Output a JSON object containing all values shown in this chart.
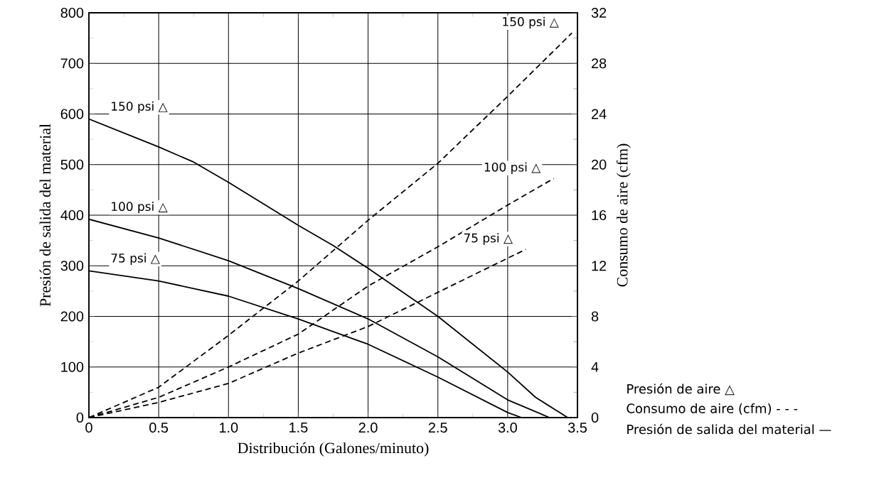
{
  "chart_data": {
    "type": "line",
    "xlabel": "Distribución (Galones/minuto)",
    "ylabel": "Presión de salida del material",
    "y2label": "Consumo de aire (cfm)",
    "xlim": [
      0,
      3.5
    ],
    "ylim": [
      0,
      800
    ],
    "y2lim": [
      0,
      32
    ],
    "xticks": [
      0,
      0.5,
      {
        "value": 1,
        "label": "1.0"
      },
      1.5,
      {
        "value": 2,
        "label": "2.0"
      },
      2.5,
      {
        "value": 3,
        "label": "3.0"
      },
      3.5
    ],
    "yticks": [
      0,
      100,
      200,
      300,
      400,
      500,
      600,
      700,
      800
    ],
    "y2ticks": [
      0,
      4,
      8,
      12,
      16,
      20,
      24,
      28,
      32
    ],
    "grid": true,
    "series": [
      {
        "name": "150 psi △",
        "color": "#000000",
        "line_style": "solid",
        "x": [
          0,
          0.5,
          0.75,
          1.0,
          1.5,
          1.75,
          2.0,
          2.5,
          3.0,
          3.2,
          3.43
        ],
        "values": [
          590,
          535,
          505,
          465,
          380,
          340,
          295,
          200,
          90,
          40,
          0
        ]
      },
      {
        "name": "100 psi △",
        "color": "#000000",
        "line_style": "solid",
        "x": [
          0,
          0.5,
          1.0,
          1.5,
          2.0,
          2.5,
          3.0,
          3.3
        ],
        "values": [
          392,
          355,
          310,
          255,
          195,
          120,
          35,
          0
        ]
      },
      {
        "name": "75 psi △",
        "color": "#000000",
        "line_style": "solid",
        "x": [
          0,
          0.5,
          1.0,
          1.5,
          2.0,
          2.5,
          3.0,
          3.1
        ],
        "values": [
          290,
          270,
          240,
          195,
          145,
          80,
          10,
          0
        ]
      },
      {
        "name": "150 psi △",
        "color": "#000000",
        "line_style": "dashed",
        "axis": "y2",
        "x": [
          0,
          0.5,
          1.0,
          1.5,
          2.0,
          2.5,
          3.0,
          3.46
        ],
        "values": [
          0,
          2.4,
          6.5,
          10.8,
          15.6,
          20.1,
          25.4,
          30.4
        ]
      },
      {
        "name": "100 psi △",
        "color": "#000000",
        "line_style": "dashed",
        "axis": "y2",
        "x": [
          0,
          0.5,
          1.0,
          1.5,
          2.0,
          2.5,
          3.0,
          3.33
        ],
        "values": [
          0,
          1.6,
          4.0,
          6.6,
          10.4,
          13.5,
          16.8,
          18.9
        ]
      },
      {
        "name": "75 psi △",
        "color": "#000000",
        "line_style": "dashed",
        "axis": "y2",
        "x": [
          0,
          0.5,
          1.0,
          1.5,
          2.0,
          2.5,
          3.0,
          3.13
        ],
        "values": [
          0,
          1.2,
          2.7,
          5.1,
          7.2,
          9.9,
          12.6,
          13.3
        ]
      }
    ],
    "annotations": [
      "Presión de aire △",
      "Consumo de aire (cfm) - - -",
      "Presión de salida del material —"
    ]
  }
}
